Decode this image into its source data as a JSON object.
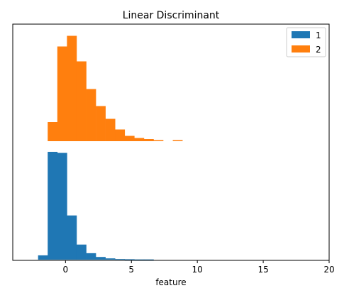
{
  "chart_data": {
    "type": "bar",
    "title": "Linear Discriminant",
    "xlabel": "feature",
    "ylabel": "",
    "xlim": [
      -4.0,
      20.0
    ],
    "xticks": [
      0,
      5,
      10,
      15,
      20
    ],
    "legend_placement": "top-right",
    "grid": false,
    "bin_width": 0.73,
    "series": [
      {
        "name": "1",
        "color": "#1f77b4",
        "panel": "bottom",
        "ylim": [
          0,
          1.0
        ],
        "bin_left": -2.08,
        "values": [
          0.04,
          1.0,
          0.99,
          0.41,
          0.14,
          0.06,
          0.025,
          0.012,
          0.006,
          0.004,
          0.002,
          0.002
        ]
      },
      {
        "name": "2",
        "color": "#ff7f0e",
        "panel": "top",
        "ylim": [
          0,
          1.0
        ],
        "bin_left": -1.35,
        "values": [
          0.18,
          0.89,
          0.99,
          0.75,
          0.49,
          0.33,
          0.21,
          0.11,
          0.05,
          0.03,
          0.02,
          0.01,
          0.0,
          0.01
        ]
      }
    ]
  }
}
